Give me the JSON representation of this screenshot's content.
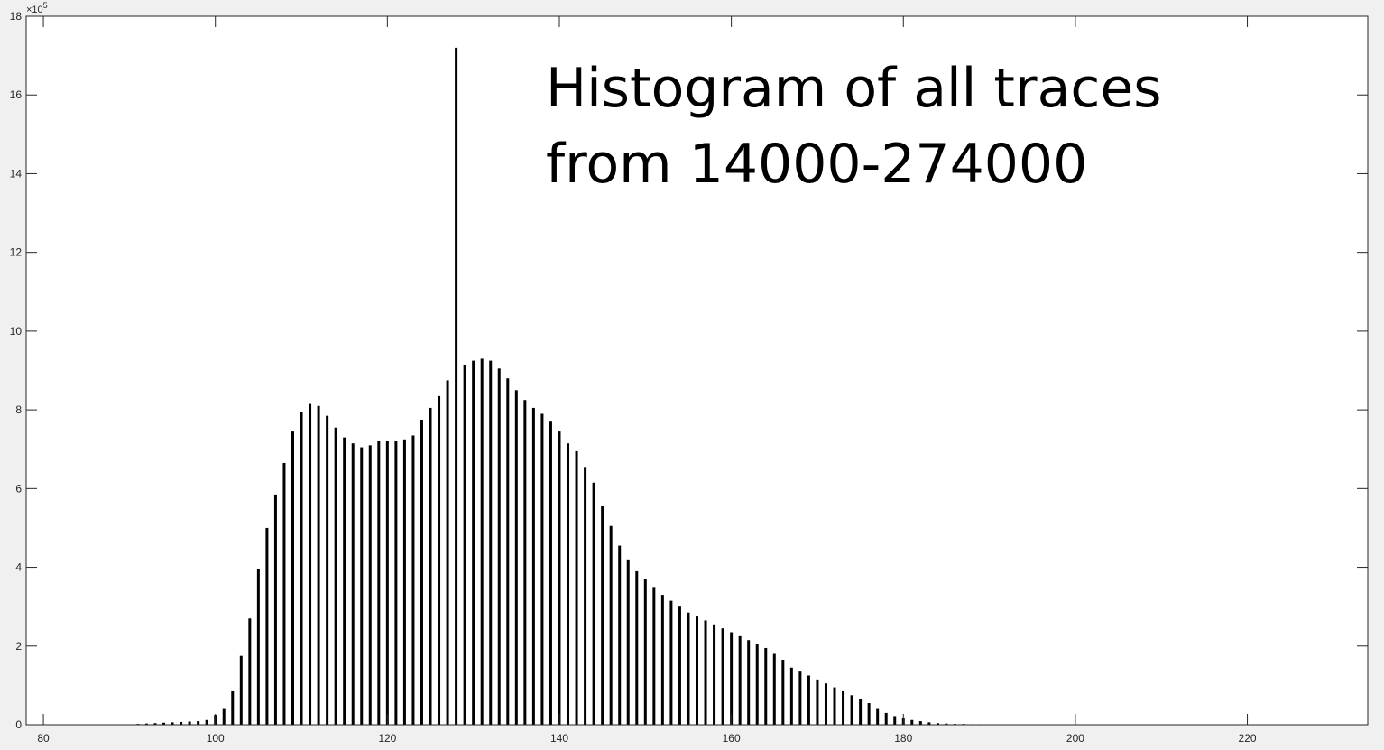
{
  "figure": {
    "background": "#f0f0f0",
    "axes_background": "#ffffff",
    "bar_color": "#000000",
    "axis_color": "#262626"
  },
  "annotation": {
    "line1": "Histogram of all traces",
    "line2": "from 14000-274000"
  },
  "y_exponent": {
    "base": "×10",
    "power": "5"
  },
  "chart_data": {
    "type": "bar",
    "title": "",
    "xlabel": "",
    "ylabel": "",
    "xlim": [
      78,
      234
    ],
    "ylim": [
      0,
      18
    ],
    "y_scale_factor": 100000,
    "grid": false,
    "legend": "none",
    "x_ticks": [
      80,
      100,
      120,
      140,
      160,
      180,
      200,
      220
    ],
    "x_tick_labels": [
      "80",
      "100",
      "120",
      "140",
      "160",
      "180",
      "200",
      "220"
    ],
    "y_ticks": [
      0,
      2,
      4,
      6,
      8,
      10,
      12,
      14,
      16,
      18
    ],
    "y_tick_labels": [
      "0",
      "2",
      "4",
      "6",
      "8",
      "10",
      "12",
      "14",
      "16",
      "18"
    ],
    "x": [
      91,
      92,
      93,
      94,
      95,
      96,
      97,
      98,
      99,
      100,
      101,
      102,
      103,
      104,
      105,
      106,
      107,
      108,
      109,
      110,
      111,
      112,
      113,
      114,
      115,
      116,
      117,
      118,
      119,
      120,
      121,
      122,
      123,
      124,
      125,
      126,
      127,
      128,
      129,
      130,
      131,
      132,
      133,
      134,
      135,
      136,
      137,
      138,
      139,
      140,
      141,
      142,
      143,
      144,
      145,
      146,
      147,
      148,
      149,
      150,
      151,
      152,
      153,
      154,
      155,
      156,
      157,
      158,
      159,
      160,
      161,
      162,
      163,
      164,
      165,
      166,
      167,
      168,
      169,
      170,
      171,
      172,
      173,
      174,
      175,
      176,
      177,
      178,
      179,
      180,
      181,
      182,
      183,
      184,
      185,
      186,
      187,
      188,
      189
    ],
    "values": [
      0.02,
      0.03,
      0.04,
      0.05,
      0.06,
      0.07,
      0.08,
      0.09,
      0.12,
      0.25,
      0.4,
      0.85,
      1.75,
      2.7,
      3.95,
      5.0,
      5.85,
      6.65,
      7.45,
      7.95,
      8.15,
      8.1,
      7.85,
      7.55,
      7.3,
      7.15,
      7.05,
      7.1,
      7.2,
      7.2,
      7.2,
      7.25,
      7.35,
      7.75,
      8.05,
      8.35,
      8.75,
      17.2,
      9.15,
      9.25,
      9.3,
      9.25,
      9.05,
      8.8,
      8.5,
      8.25,
      8.05,
      7.9,
      7.7,
      7.45,
      7.15,
      6.95,
      6.55,
      6.15,
      5.55,
      5.05,
      4.55,
      4.2,
      3.9,
      3.7,
      3.5,
      3.3,
      3.15,
      3.0,
      2.85,
      2.75,
      2.65,
      2.55,
      2.45,
      2.35,
      2.25,
      2.15,
      2.05,
      1.95,
      1.8,
      1.65,
      1.45,
      1.35,
      1.25,
      1.15,
      1.05,
      0.95,
      0.85,
      0.75,
      0.65,
      0.55,
      0.4,
      0.3,
      0.22,
      0.18,
      0.12,
      0.09,
      0.06,
      0.04,
      0.03,
      0.02,
      0.02,
      0.01,
      0.01
    ]
  }
}
